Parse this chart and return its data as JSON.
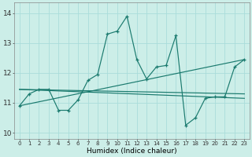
{
  "xlabel": "Humidex (Indice chaleur)",
  "bg_color": "#cceee8",
  "grid_color": "#aaddda",
  "line_color": "#1a7a6e",
  "xlim": [
    -0.5,
    23.5
  ],
  "ylim": [
    9.8,
    14.35
  ],
  "yticks": [
    10,
    11,
    12,
    13,
    14
  ],
  "xticks": [
    0,
    1,
    2,
    3,
    4,
    5,
    6,
    7,
    8,
    9,
    10,
    11,
    12,
    13,
    14,
    15,
    16,
    17,
    18,
    19,
    20,
    21,
    22,
    23
  ],
  "main_x": [
    0,
    1,
    2,
    3,
    4,
    5,
    6,
    7,
    8,
    9,
    10,
    11,
    12,
    13,
    14,
    15,
    16,
    17,
    18,
    19,
    20,
    21,
    22,
    23
  ],
  "main_y": [
    10.9,
    11.3,
    11.45,
    11.45,
    10.75,
    10.75,
    11.1,
    11.75,
    11.95,
    13.3,
    13.4,
    13.9,
    12.45,
    11.8,
    12.2,
    12.25,
    13.25,
    10.25,
    10.5,
    11.15,
    11.2,
    11.2,
    12.2,
    12.45
  ],
  "trend1_x": [
    0,
    23
  ],
  "trend1_y": [
    10.9,
    12.45
  ],
  "trend2_x": [
    0,
    23
  ],
  "trend2_y": [
    11.45,
    11.3
  ],
  "trend3_x": [
    0,
    23
  ],
  "trend3_y": [
    11.45,
    11.15
  ]
}
